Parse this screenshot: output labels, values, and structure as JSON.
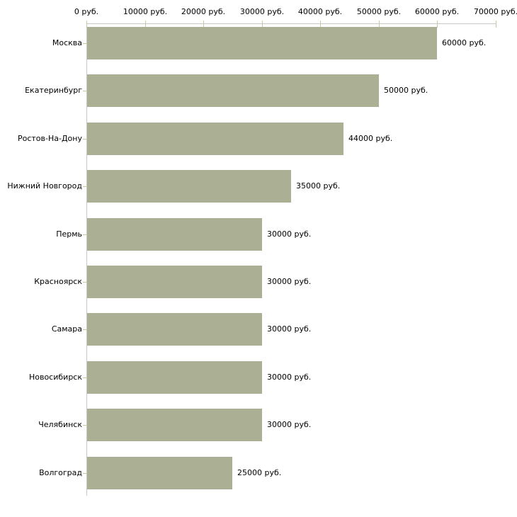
{
  "chart_data": {
    "type": "bar",
    "orientation": "horizontal",
    "title": "",
    "xlabel": "",
    "ylabel": "",
    "categories": [
      "Москва",
      "Екатеринбург",
      "Ростов-На-Дону",
      "Нижний Новгород",
      "Пермь",
      "Красноярск",
      "Самара",
      "Новосибирск",
      "Челябинск",
      "Волгоград"
    ],
    "values": [
      60000,
      50000,
      44000,
      35000,
      30000,
      30000,
      30000,
      30000,
      30000,
      25000
    ],
    "value_labels": [
      "60000 руб.",
      "50000 руб.",
      "44000 руб.",
      "35000 руб.",
      "30000 руб.",
      "30000 руб.",
      "30000 руб.",
      "30000 руб.",
      "30000 руб.",
      "25000 руб."
    ],
    "x_axis": {
      "position": "top",
      "min": 0,
      "max": 70000,
      "ticks": [
        0,
        10000,
        20000,
        30000,
        40000,
        50000,
        60000,
        70000
      ],
      "tick_labels": [
        "0 руб.",
        "10000 руб.",
        "20000 руб.",
        "30000 руб.",
        "40000 руб.",
        "50000 руб.",
        "60000 руб.",
        "70000 руб."
      ]
    },
    "grid": false,
    "legend": false,
    "colors": {
      "bar": "#abb094",
      "axis_line": "#c8c8c8",
      "tick_mark": "#c8c8a0",
      "text": "#000000",
      "background": "#ffffff"
    }
  }
}
